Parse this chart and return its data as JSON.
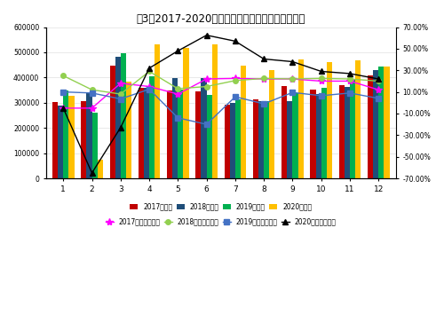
{
  "title": "图3：2017-2020年月度商用车销量及同比变化情况",
  "months": [
    1,
    2,
    3,
    4,
    5,
    6,
    7,
    8,
    9,
    10,
    11,
    12
  ],
  "sales_2017": [
    303000,
    305000,
    448000,
    360000,
    347000,
    345000,
    292000,
    315000,
    365000,
    352000,
    368000,
    408000
  ],
  "sales_2018": [
    290000,
    340000,
    483000,
    360000,
    398000,
    398000,
    298000,
    308000,
    308000,
    335000,
    362000,
    428000
  ],
  "sales_2019": [
    348000,
    260000,
    498000,
    405000,
    352000,
    332000,
    315000,
    305000,
    338000,
    358000,
    395000,
    445000
  ],
  "sales_2020": [
    328000,
    75000,
    383000,
    533000,
    517000,
    533000,
    448000,
    430000,
    470000,
    462000,
    468000,
    445000
  ],
  "growth_2017": [
    -5.0,
    -5.0,
    18.0,
    15.0,
    8.0,
    22.0,
    22.5,
    22.0,
    22.0,
    20.0,
    20.0,
    12.0
  ],
  "growth_2018": [
    25.0,
    12.0,
    8.0,
    29.0,
    13.0,
    15.0,
    20.5,
    22.5,
    22.0,
    22.5,
    22.0,
    20.0
  ],
  "growth_2019": [
    10.0,
    9.0,
    3.5,
    12.5,
    -14.0,
    -20.0,
    5.5,
    -1.0,
    9.5,
    6.5,
    9.0,
    4.0
  ],
  "growth_2020": [
    -5.0,
    -65.0,
    -23.0,
    32.0,
    48.0,
    62.5,
    57.0,
    40.5,
    38.0,
    29.0,
    27.0,
    22.0
  ],
  "bar_colors": [
    "#C00000",
    "#1F4E79",
    "#00B050",
    "#FFC000"
  ],
  "line_colors": [
    "#FF00FF",
    "#92D050",
    "#4472C4",
    "#000000"
  ],
  "line_markers": [
    "*",
    "o",
    "s",
    "^"
  ],
  "line_styles": [
    "-",
    "-",
    "-",
    "-"
  ],
  "ylim_left": [
    0,
    600000
  ],
  "ylim_right": [
    -70,
    70
  ],
  "yticks_left": [
    0,
    100000,
    200000,
    300000,
    400000,
    500000,
    600000
  ],
  "ytick_labels_left": [
    "0",
    "100000",
    "200000",
    "300000",
    "400000",
    "500000",
    "600000"
  ],
  "yticks_right": [
    -70,
    -50,
    -30,
    -10,
    10,
    30,
    50,
    70
  ],
  "ytick_labels_right": [
    "-70.00%",
    "-50.00%",
    "-30.00%",
    "-10.00%",
    "10.00%",
    "30.00%",
    "50.00%",
    "70.00%"
  ],
  "legend_labels_bar": [
    "2017年销量",
    "2018年销量",
    "2019年销量",
    "2020年销量"
  ],
  "legend_labels_line": [
    "2017年同比增长率",
    "2018年同比增长率",
    "2019年同比增长率",
    "2020年同比增长率"
  ],
  "bg_color": "#FFFFFF",
  "grid_color": "#D9D9D9"
}
